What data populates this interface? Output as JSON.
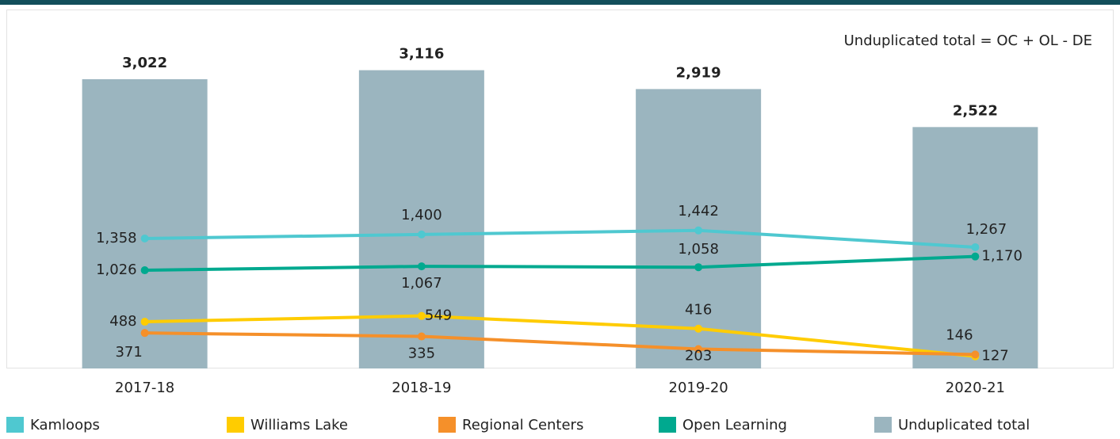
{
  "chart_data": {
    "type": "combo",
    "annotation": "Unduplicated total = OC + OL - DE",
    "categories": [
      "2017-18",
      "2018-19",
      "2019-20",
      "2020-21"
    ],
    "ylim": [
      0,
      3750
    ],
    "series": [
      {
        "name": "Kamloops",
        "type": "line",
        "color": "#4fc8d0",
        "values": [
          1358,
          1400,
          1442,
          1267
        ],
        "value_labels": [
          "1,358",
          "1,400",
          "1,442",
          "1,267"
        ]
      },
      {
        "name": "Williams Lake",
        "type": "line",
        "color": "#ffcc00",
        "values": [
          488,
          549,
          416,
          127
        ],
        "value_labels": [
          "488",
          "549",
          "416",
          "127"
        ]
      },
      {
        "name": "Regional Centers",
        "type": "line",
        "color": "#f5902a",
        "values": [
          371,
          335,
          203,
          146
        ],
        "value_labels": [
          "371",
          "335",
          "203",
          "146"
        ]
      },
      {
        "name": "Open Learning",
        "type": "line",
        "color": "#00a98f",
        "values": [
          1026,
          1067,
          1058,
          1170
        ],
        "value_labels": [
          "1,026",
          "1,067",
          "1,058",
          "1,170"
        ]
      },
      {
        "name": "Unduplicated total",
        "type": "bar",
        "color": "#9bb5bf",
        "values": [
          3022,
          3116,
          2919,
          2522
        ],
        "value_labels": [
          "3,022",
          "3,116",
          "2,919",
          "2,522"
        ]
      }
    ]
  }
}
